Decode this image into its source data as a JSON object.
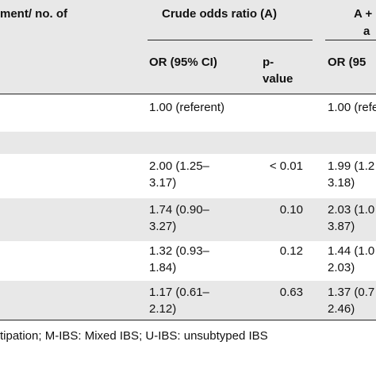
{
  "header": {
    "col0": "ment/ no. of",
    "groupA": "Crude odds ratio (A)",
    "groupB_line1": "A +",
    "groupB_line2": "a",
    "or_ci": "OR (95% CI)",
    "p_line1": "p-",
    "p_line2": "value",
    "or_ci_b": "OR (95"
  },
  "rows": [
    {
      "or_a": [
        "1.00 (referent)"
      ],
      "p": "",
      "or_b": [
        "1.00 (refe"
      ]
    },
    {
      "or_a": [
        ""
      ],
      "p": "",
      "or_b": [
        ""
      ]
    },
    {
      "or_a": [
        "2.00 (1.25–",
        "3.17)"
      ],
      "p": "< 0.01",
      "or_b": [
        "1.99 (1.2",
        "3.18)"
      ]
    },
    {
      "or_a": [
        "1.74 (0.90–",
        "3.27)"
      ],
      "p": "0.10",
      "or_b": [
        "2.03 (1.0",
        "3.87)"
      ]
    },
    {
      "or_a": [
        "1.32 (0.93–",
        "1.84)"
      ],
      "p": "0.12",
      "or_b": [
        "1.44 (1.0",
        "2.03)"
      ]
    },
    {
      "or_a": [
        "1.17 (0.61–",
        "2.12)"
      ],
      "p": "0.63",
      "or_b": [
        "1.37 (0.7",
        "2.46)"
      ]
    }
  ],
  "footnote": "tipation; M-IBS: Mixed IBS; U-IBS: unsubtyped IBS",
  "colors": {
    "band": "#e8e8e8",
    "rule": "#222222",
    "text": "#111111"
  }
}
